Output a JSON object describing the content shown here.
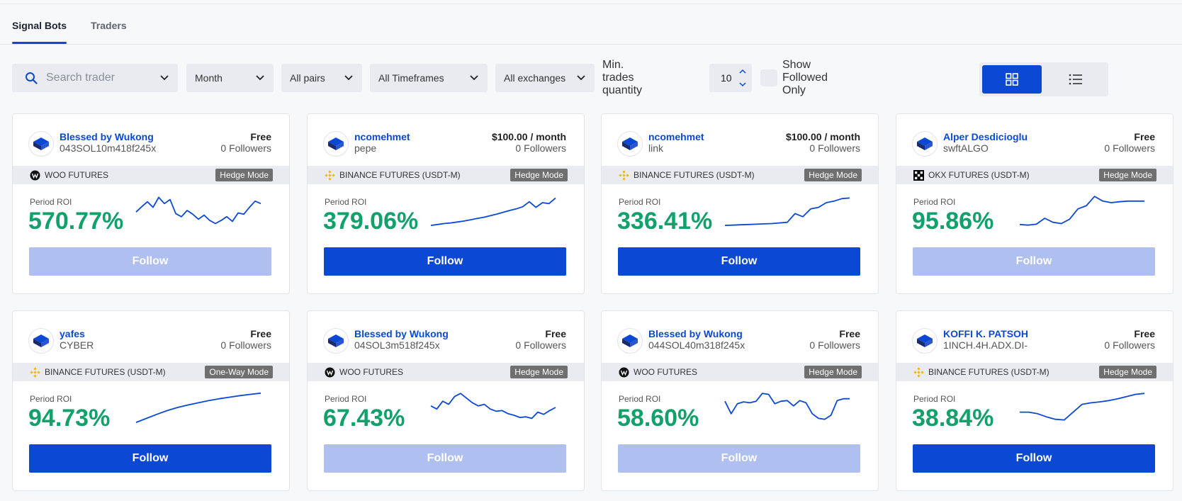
{
  "tabs": [
    {
      "label": "Signal Bots",
      "active": true
    },
    {
      "label": "Traders",
      "active": false
    }
  ],
  "filters": {
    "search_placeholder": "Search trader",
    "period": "Month",
    "pairs": "All pairs",
    "timeframes": "All Timeframes",
    "exchanges": "All exchanges",
    "min_trades_label": "Min. trades quantity",
    "min_trades_value": "10",
    "show_followed_label": "Show Followed Only",
    "view_mode": "grid"
  },
  "colors": {
    "accent": "#0b48d4",
    "roi": "#12a06b",
    "follow_disabled": "#aebff0",
    "mode_badge": "#6f6f6f"
  },
  "cards": [
    {
      "name": "Blessed by Wukong",
      "subtitle": "043SOL10m418f245x",
      "price": "Free",
      "followers": "0 Followers",
      "exchange": "WOO FUTURES",
      "exchange_icon": "woo-icon",
      "mode": "Hedge Mode",
      "roi_label": "Period ROI",
      "roi": "570.77%",
      "follow": "Follow",
      "follow_enabled": false,
      "spark": [
        0.45,
        0.62,
        0.78,
        0.6,
        0.92,
        0.72,
        0.85,
        0.4,
        0.3,
        0.5,
        0.38,
        0.22,
        0.35,
        0.18,
        0.08,
        0.18,
        0.3,
        0.15,
        0.42,
        0.38,
        0.6,
        0.8,
        0.72
      ]
    },
    {
      "name": "ncomehmet",
      "subtitle": "pepe",
      "price": "$100.00 / month",
      "followers": "0 Followers",
      "exchange": "BINANCE FUTURES (USDT-M)",
      "exchange_icon": "binance-icon",
      "mode": "Hedge Mode",
      "roi_label": "Period ROI",
      "roi": "379.06%",
      "follow": "Follow",
      "follow_enabled": true,
      "spark": [
        0.02,
        0.05,
        0.08,
        0.1,
        0.13,
        0.16,
        0.2,
        0.24,
        0.28,
        0.33,
        0.38,
        0.44,
        0.5,
        0.55,
        0.62,
        0.78,
        0.6,
        0.75,
        0.72,
        0.9
      ]
    },
    {
      "name": "ncomehmet",
      "subtitle": "link",
      "price": "$100.00 / month",
      "followers": "0 Followers",
      "exchange": "BINANCE FUTURES (USDT-M)",
      "exchange_icon": "binance-icon",
      "mode": "Hedge Mode",
      "roi_label": "Period ROI",
      "roi": "336.41%",
      "follow": "Follow",
      "follow_enabled": true,
      "spark": [
        0.02,
        0.03,
        0.04,
        0.05,
        0.06,
        0.07,
        0.08,
        0.1,
        0.12,
        0.4,
        0.3,
        0.55,
        0.6,
        0.75,
        0.8,
        0.88,
        0.9
      ]
    },
    {
      "name": "Alper Desdicioglu",
      "subtitle": "swftALGO",
      "price": "Free",
      "followers": "0 Followers",
      "exchange": "OKX FUTURES (USDT-M)",
      "exchange_icon": "okx-icon",
      "mode": "Hedge Mode",
      "roi_label": "Period ROI",
      "roi": "95.86%",
      "follow": "Follow",
      "follow_enabled": false,
      "spark": [
        0.05,
        0.03,
        0.06,
        0.25,
        0.12,
        0.08,
        0.22,
        0.55,
        0.65,
        0.95,
        0.8,
        0.75,
        0.78,
        0.8,
        0.8,
        0.8
      ]
    },
    {
      "name": "yafes",
      "subtitle": "CYBER",
      "price": "Free",
      "followers": "0 Followers",
      "exchange": "BINANCE FUTURES (USDT-M)",
      "exchange_icon": "binance-icon",
      "mode": "One-Way Mode",
      "roi_label": "Period ROI",
      "roi": "94.73%",
      "follow": "Follow",
      "follow_enabled": true,
      "spark": [
        0.02,
        0.15,
        0.28,
        0.4,
        0.5,
        0.58,
        0.65,
        0.72,
        0.78,
        0.83,
        0.88,
        0.92,
        0.96
      ]
    },
    {
      "name": "Blessed by Wukong",
      "subtitle": "04SOL3m518f245x",
      "price": "Free",
      "followers": "0 Followers",
      "exchange": "WOO FUTURES",
      "exchange_icon": "woo-icon",
      "mode": "Hedge Mode",
      "roi_label": "Period ROI",
      "roi": "67.43%",
      "follow": "Follow",
      "follow_enabled": false,
      "spark": [
        0.55,
        0.45,
        0.7,
        0.6,
        0.85,
        0.95,
        0.8,
        0.65,
        0.55,
        0.6,
        0.45,
        0.38,
        0.4,
        0.3,
        0.25,
        0.18,
        0.2,
        0.15,
        0.35,
        0.28,
        0.4,
        0.5
      ]
    },
    {
      "name": "Blessed by Wukong",
      "subtitle": "044SOL40m318f245x",
      "price": "Free",
      "followers": "0 Followers",
      "exchange": "WOO FUTURES",
      "exchange_icon": "woo-icon",
      "mode": "Hedge Mode",
      "roi_label": "Period ROI",
      "roi": "58.60%",
      "follow": "Follow",
      "follow_enabled": false,
      "spark": [
        0.7,
        0.3,
        0.62,
        0.68,
        0.65,
        0.7,
        0.95,
        0.92,
        0.62,
        0.7,
        0.72,
        0.55,
        0.72,
        0.65,
        0.3,
        0.15,
        0.12,
        0.25,
        0.72,
        0.78,
        0.78
      ]
    },
    {
      "name": "KOFFI K. PATSOH",
      "subtitle": "1INCH.4H.ADX.DI-",
      "price": "Free",
      "followers": "0 Followers",
      "exchange": "BINANCE FUTURES (USDT-M)",
      "exchange_icon": "binance-icon",
      "mode": "Hedge Mode",
      "roi_label": "Period ROI",
      "roi": "38.84%",
      "follow": "Follow",
      "follow_enabled": true,
      "spark": [
        0.35,
        0.35,
        0.3,
        0.2,
        0.12,
        0.1,
        0.35,
        0.6,
        0.65,
        0.68,
        0.72,
        0.78,
        0.85,
        0.92,
        0.95
      ]
    }
  ]
}
